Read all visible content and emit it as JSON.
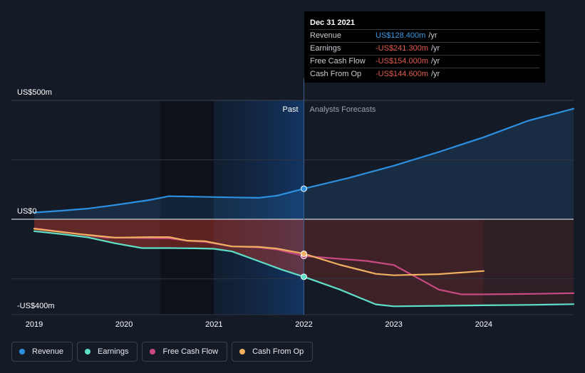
{
  "chart_data": {
    "type": "line",
    "y_labels": {
      "top": "US$500m",
      "zero": "US$0",
      "bottom": "-US$400m"
    },
    "ylim": [
      -400,
      500
    ],
    "xlim": [
      2019,
      2025.0
    ],
    "x_ticks": [
      "2019",
      "2020",
      "2021",
      "2022",
      "2023",
      "2024"
    ],
    "past_label": "Past",
    "forecast_label": "Analysts Forecasts",
    "divider_x": 2022,
    "colors": {
      "revenue": "#2d8fe0",
      "earnings": "#5ee0c8",
      "free_cash_flow": "#c84a82",
      "cash_from_op": "#f0b060"
    },
    "series": [
      {
        "name": "Revenue",
        "key": "revenue",
        "points": [
          [
            2019,
            28
          ],
          [
            2019.3,
            36
          ],
          [
            2019.6,
            45
          ],
          [
            2019.9,
            60
          ],
          [
            2020.3,
            82
          ],
          [
            2020.5,
            97
          ],
          [
            2020.8,
            95
          ],
          [
            2021.2,
            92
          ],
          [
            2021.5,
            90
          ],
          [
            2021.7,
            99
          ],
          [
            2022.0,
            128.4
          ],
          [
            2022.5,
            174
          ],
          [
            2023.0,
            225
          ],
          [
            2023.5,
            283
          ],
          [
            2024.0,
            345
          ],
          [
            2024.5,
            415
          ],
          [
            2025.0,
            465
          ]
        ]
      },
      {
        "name": "Earnings",
        "key": "earnings",
        "points": [
          [
            2019,
            -50
          ],
          [
            2019.3,
            -62
          ],
          [
            2019.6,
            -76
          ],
          [
            2019.9,
            -101
          ],
          [
            2020.2,
            -121
          ],
          [
            2020.5,
            -121
          ],
          [
            2020.8,
            -122
          ],
          [
            2021.0,
            -124
          ],
          [
            2021.2,
            -135
          ],
          [
            2021.5,
            -176
          ],
          [
            2021.75,
            -211
          ],
          [
            2022.0,
            -241.3
          ],
          [
            2022.4,
            -295
          ],
          [
            2022.8,
            -357
          ],
          [
            2023.0,
            -365
          ],
          [
            2023.5,
            -363
          ],
          [
            2024.0,
            -361
          ],
          [
            2024.5,
            -359
          ],
          [
            2025.0,
            -356
          ]
        ]
      },
      {
        "name": "Free Cash Flow",
        "key": "free_cash_flow",
        "points": [
          [
            2019,
            -38
          ],
          [
            2019.5,
            -62
          ],
          [
            2019.8,
            -77
          ],
          [
            2020.3,
            -79
          ],
          [
            2020.5,
            -80
          ],
          [
            2020.7,
            -90
          ],
          [
            2020.9,
            -95
          ],
          [
            2021.2,
            -114
          ],
          [
            2021.5,
            -118
          ],
          [
            2021.7,
            -127
          ],
          [
            2022.0,
            -154
          ],
          [
            2022.3,
            -163
          ],
          [
            2022.7,
            -175
          ],
          [
            2023.0,
            -192
          ],
          [
            2023.3,
            -253
          ],
          [
            2023.5,
            -295
          ],
          [
            2023.75,
            -315
          ],
          [
            2024.0,
            -315
          ],
          [
            2024.5,
            -313
          ],
          [
            2025.0,
            -310
          ]
        ]
      },
      {
        "name": "Cash From Op",
        "key": "cash_from_op",
        "points": [
          [
            2019,
            -40
          ],
          [
            2019.5,
            -62
          ],
          [
            2019.9,
            -77
          ],
          [
            2020.3,
            -75
          ],
          [
            2020.5,
            -75
          ],
          [
            2020.7,
            -90
          ],
          [
            2020.9,
            -92
          ],
          [
            2021.2,
            -114
          ],
          [
            2021.5,
            -116
          ],
          [
            2021.7,
            -123
          ],
          [
            2022.0,
            -144.6
          ],
          [
            2022.4,
            -191
          ],
          [
            2022.8,
            -229
          ],
          [
            2023.0,
            -235
          ],
          [
            2023.5,
            -230
          ],
          [
            2024.0,
            -217
          ]
        ]
      }
    ]
  },
  "tooltip": {
    "date": "Dec 31 2021",
    "rows": [
      {
        "label": "Revenue",
        "value": "US$128.400m",
        "unit": "/yr",
        "positive": true
      },
      {
        "label": "Earnings",
        "value": "-US$241.300m",
        "unit": "/yr",
        "positive": false
      },
      {
        "label": "Free Cash Flow",
        "value": "-US$154.000m",
        "unit": "/yr",
        "positive": false
      },
      {
        "label": "Cash From Op",
        "value": "-US$144.600m",
        "unit": "/yr",
        "positive": false
      }
    ]
  },
  "legend": [
    {
      "label": "Revenue",
      "color": "#2d8fe0"
    },
    {
      "label": "Earnings",
      "color": "#5ee0c8"
    },
    {
      "label": "Free Cash Flow",
      "color": "#c84a82"
    },
    {
      "label": "Cash From Op",
      "color": "#f0b060"
    }
  ]
}
